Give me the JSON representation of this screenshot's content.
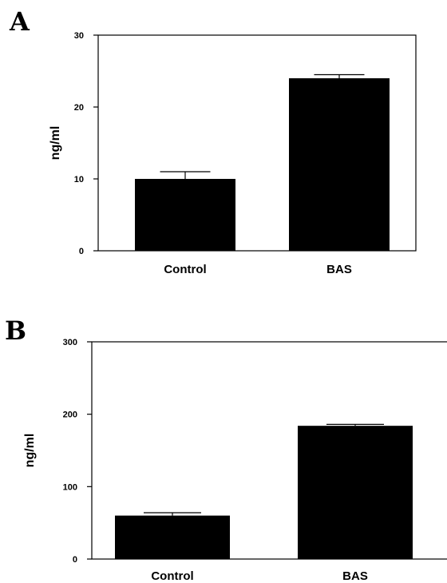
{
  "chart_data": [
    {
      "panel": "A",
      "type": "bar",
      "categories": [
        "Control",
        "BAS"
      ],
      "values": [
        10,
        24
      ],
      "errors": [
        1,
        0.5
      ],
      "ylabel": "ng/ml",
      "ylim": [
        0,
        30
      ],
      "yticks": [
        "0",
        "10",
        "20",
        "30"
      ],
      "bar_color": "#000000"
    },
    {
      "panel": "B",
      "type": "bar",
      "categories": [
        "Control",
        "BAS"
      ],
      "values": [
        60,
        184
      ],
      "errors": [
        4,
        2
      ],
      "ylabel": "ng/ml",
      "ylim": [
        0,
        300
      ],
      "yticks": [
        "0",
        "100",
        "200",
        "300"
      ],
      "bar_color": "#000000"
    }
  ]
}
